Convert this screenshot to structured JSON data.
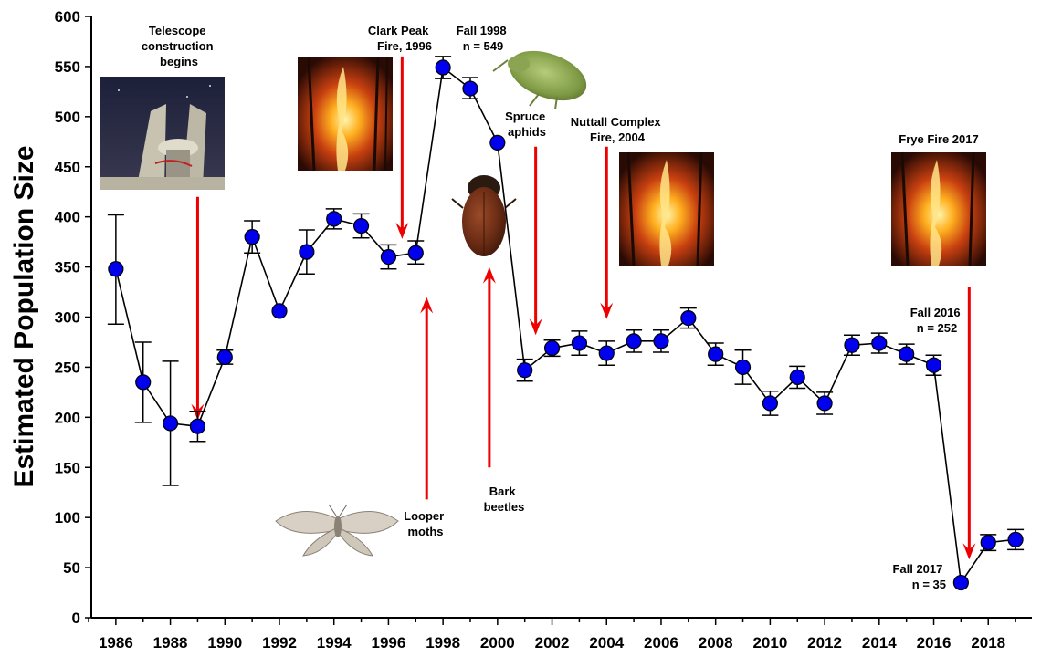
{
  "chart_data": {
    "type": "scatter",
    "ylabel": "Estimated Population Size",
    "xlabel": "",
    "xlim": [
      1985.1,
      2019.6
    ],
    "ylim": [
      0,
      600
    ],
    "yticks": [
      0,
      50,
      100,
      150,
      200,
      250,
      300,
      350,
      400,
      450,
      500,
      550,
      600
    ],
    "xticks": [
      1986,
      1988,
      1990,
      1992,
      1994,
      1996,
      1998,
      2000,
      2002,
      2004,
      2006,
      2008,
      2010,
      2012,
      2014,
      2016,
      2018
    ],
    "grid": false,
    "marker_color": "#0000ee",
    "arrow_color": "#ee0000",
    "series": [
      {
        "points": [
          {
            "x": 1986,
            "y": 348,
            "low": 293,
            "high": 402
          },
          {
            "x": 1987,
            "y": 235,
            "low": 195,
            "high": 275
          },
          {
            "x": 1988,
            "y": 194,
            "low": 132,
            "high": 256
          },
          {
            "x": 1989,
            "y": 191,
            "low": 176,
            "high": 206
          },
          {
            "x": 1990,
            "y": 260,
            "low": 253,
            "high": 267
          },
          {
            "x": 1991,
            "y": 380,
            "low": 364,
            "high": 396
          },
          {
            "x": 1992,
            "y": 306
          },
          {
            "x": 1993,
            "y": 365,
            "low": 343,
            "high": 387
          },
          {
            "x": 1994,
            "y": 398,
            "low": 388,
            "high": 408
          },
          {
            "x": 1995,
            "y": 391,
            "low": 379,
            "high": 403
          },
          {
            "x": 1996,
            "y": 360,
            "low": 348,
            "high": 372
          },
          {
            "x": 1997,
            "y": 364,
            "low": 353,
            "high": 376
          },
          {
            "x": 1998,
            "y": 549,
            "low": 538,
            "high": 560
          },
          {
            "x": 1999,
            "y": 528,
            "low": 518,
            "high": 539
          },
          {
            "x": 2000,
            "y": 474
          },
          {
            "x": 2001,
            "y": 247,
            "low": 236,
            "high": 258
          },
          {
            "x": 2002,
            "y": 269,
            "low": 261,
            "high": 277
          },
          {
            "x": 2003,
            "y": 274,
            "low": 262,
            "high": 286
          },
          {
            "x": 2004,
            "y": 264,
            "low": 252,
            "high": 276
          },
          {
            "x": 2005,
            "y": 276,
            "low": 265,
            "high": 287
          },
          {
            "x": 2006,
            "y": 276,
            "low": 265,
            "high": 287
          },
          {
            "x": 2007,
            "y": 299,
            "low": 289,
            "high": 309
          },
          {
            "x": 2008,
            "y": 263,
            "low": 252,
            "high": 274
          },
          {
            "x": 2009,
            "y": 250,
            "low": 233,
            "high": 267
          },
          {
            "x": 2010,
            "y": 214,
            "low": 202,
            "high": 226
          },
          {
            "x": 2011,
            "y": 240,
            "low": 229,
            "high": 251
          },
          {
            "x": 2012,
            "y": 214,
            "low": 203,
            "high": 225
          },
          {
            "x": 2013,
            "y": 272,
            "low": 262,
            "high": 282
          },
          {
            "x": 2014,
            "y": 274,
            "low": 264,
            "high": 284
          },
          {
            "x": 2015,
            "y": 263,
            "low": 253,
            "high": 273
          },
          {
            "x": 2016,
            "y": 252,
            "low": 242,
            "high": 262
          },
          {
            "x": 2017,
            "y": 35
          },
          {
            "x": 2018,
            "y": 75,
            "low": 67,
            "high": 83
          },
          {
            "x": 2019,
            "y": 78,
            "low": 68,
            "high": 88
          }
        ]
      }
    ],
    "annotations": [
      {
        "id": "telescope",
        "lines": [
          "Telescope",
          "construction",
          "begins"
        ]
      },
      {
        "id": "clark",
        "lines": [
          "Clark Peak",
          "Fire, 1996"
        ]
      },
      {
        "id": "fall1998",
        "lines": [
          "Fall 1998",
          "n = 549"
        ]
      },
      {
        "id": "aphids",
        "lines": [
          "Spruce",
          "aphids"
        ]
      },
      {
        "id": "nuttall",
        "lines": [
          "Nuttall Complex",
          "Fire, 2004"
        ]
      },
      {
        "id": "frye",
        "lines": [
          "Frye Fire 2017"
        ]
      },
      {
        "id": "fall2016",
        "lines": [
          "Fall 2016",
          "n = 252"
        ]
      },
      {
        "id": "fall2017",
        "lines": [
          "Fall 2017",
          "n = 35"
        ]
      },
      {
        "id": "looper",
        "lines": [
          "Looper",
          "moths"
        ]
      },
      {
        "id": "beetles",
        "lines": [
          "Bark",
          "beetles"
        ]
      }
    ],
    "arrows": [
      {
        "id": "telescope",
        "x": 1989,
        "y_from": 420,
        "y_to": 197,
        "direction": "down"
      },
      {
        "id": "clark",
        "x": 1996.5,
        "y_from": 560,
        "y_to": 378,
        "direction": "down"
      },
      {
        "id": "aphids",
        "x": 2001.4,
        "y_from": 470,
        "y_to": 282,
        "direction": "down"
      },
      {
        "id": "nuttall",
        "x": 2004,
        "y_from": 470,
        "y_to": 298,
        "direction": "down"
      },
      {
        "id": "frye",
        "x": 2017.3,
        "y_from": 330,
        "y_to": 58,
        "direction": "down"
      },
      {
        "id": "looper",
        "x": 1997.4,
        "y_from": 118,
        "y_to": 320,
        "direction": "up"
      },
      {
        "id": "beetles",
        "x": 1999.7,
        "y_from": 150,
        "y_to": 350,
        "direction": "up"
      }
    ],
    "pictures": [
      {
        "id": "telescope-photo",
        "icon": "telescope-photo"
      },
      {
        "id": "fire-photo-1996",
        "icon": "fire-photo"
      },
      {
        "id": "fire-photo-2004",
        "icon": "fire-photo"
      },
      {
        "id": "fire-photo-2017",
        "icon": "fire-photo"
      },
      {
        "id": "aphid-photo",
        "icon": "aphid-photo"
      },
      {
        "id": "beetle-photo",
        "icon": "beetle-photo"
      },
      {
        "id": "moth-photo",
        "icon": "moth-photo"
      }
    ]
  }
}
